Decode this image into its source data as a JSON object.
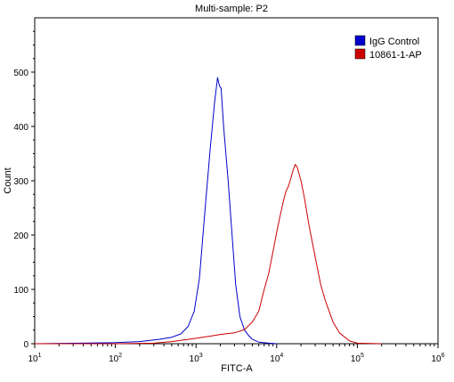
{
  "chart_data": {
    "type": "line",
    "title": "Multi-sample: P2",
    "xlabel": "FITC-A",
    "ylabel": "Count",
    "xscale": "log",
    "xlim": [
      10,
      1000000
    ],
    "ylim": [
      0,
      600
    ],
    "x_ticks": [
      {
        "value": 10,
        "base": "10",
        "exp": "1"
      },
      {
        "value": 100,
        "base": "10",
        "exp": "2"
      },
      {
        "value": 1000,
        "base": "10",
        "exp": "3"
      },
      {
        "value": 10000,
        "base": "10",
        "exp": "4"
      },
      {
        "value": 100000,
        "base": "10",
        "exp": "5"
      },
      {
        "value": 1000000,
        "base": "10",
        "exp": "6"
      }
    ],
    "y_ticks": [
      0,
      100,
      200,
      300,
      400,
      500
    ],
    "legend_position": "top-right",
    "grid": false,
    "series": [
      {
        "name": "IgG Control",
        "color": "#0000cc",
        "x": [
          10,
          100,
          200,
          350,
          500,
          650,
          800,
          950,
          1100,
          1300,
          1500,
          1700,
          1850,
          1950,
          2050,
          2200,
          2500,
          2800,
          3100,
          3500,
          4000,
          4500,
          5000,
          6000,
          8000,
          10000
        ],
        "y": [
          0,
          2,
          4,
          8,
          12,
          18,
          32,
          60,
          120,
          250,
          360,
          445,
          490,
          475,
          470,
          400,
          300,
          200,
          110,
          50,
          25,
          15,
          8,
          3,
          1,
          0
        ]
      },
      {
        "name": "10861-1-AP",
        "color": "#cc0000",
        "x": [
          10,
          100,
          300,
          500,
          800,
          1000,
          1500,
          2000,
          3000,
          4000,
          5000,
          6000,
          7000,
          8000,
          9000,
          10000,
          11000,
          12000,
          13000,
          14000,
          15000,
          16000,
          17000,
          18000,
          20000,
          22000,
          25000,
          30000,
          35000,
          40000,
          50000,
          60000,
          80000,
          100000,
          200000
        ],
        "y": [
          0,
          0,
          1,
          4,
          8,
          10,
          14,
          17,
          20,
          26,
          40,
          60,
          100,
          130,
          170,
          205,
          235,
          260,
          280,
          290,
          305,
          320,
          330,
          325,
          300,
          270,
          220,
          160,
          110,
          80,
          40,
          20,
          5,
          1,
          0
        ]
      }
    ]
  }
}
